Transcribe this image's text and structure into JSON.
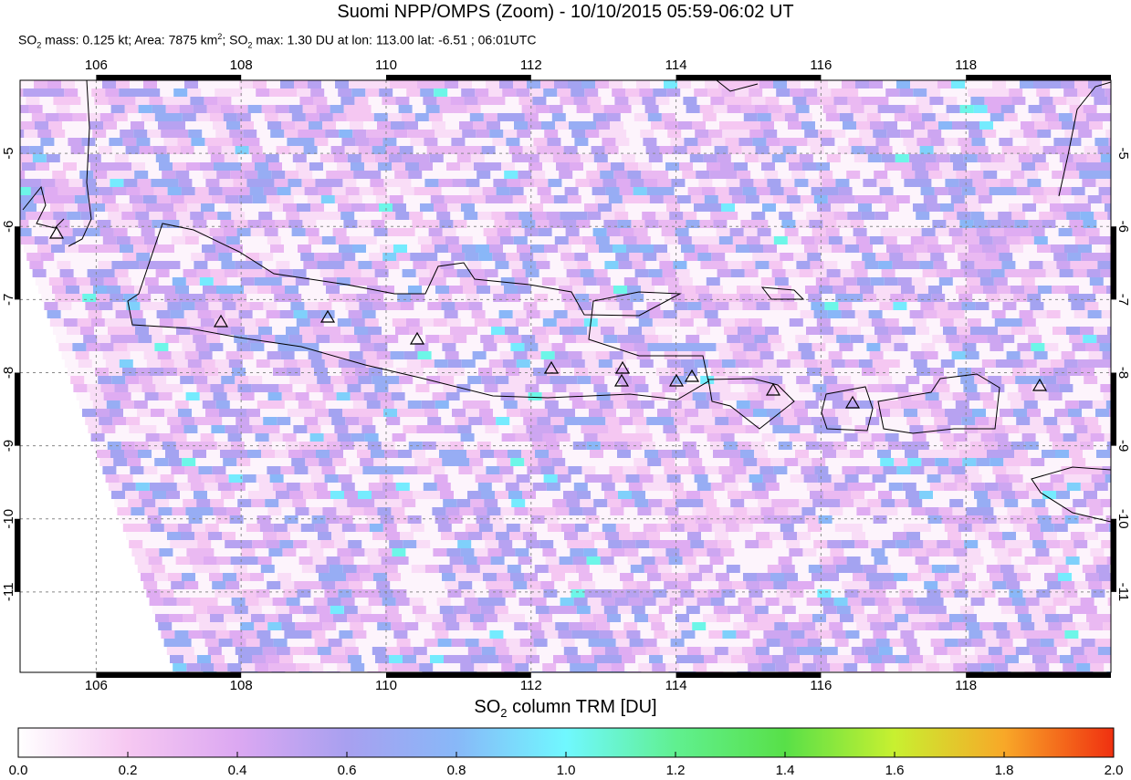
{
  "header": {
    "title": "Suomi NPP/OMPS (Zoom) - 10/10/2015 05:59-06:02 UT",
    "subtitle": [
      "SO",
      "2",
      " mass: 0.125 kt; Area: 7875 km",
      "2",
      "; SO",
      "2",
      " max: 1.30 DU at lon: 113.00 lat: -6.51 ; 06:01UTC"
    ]
  },
  "map": {
    "xlim": [
      104.95,
      120
    ],
    "ylim": [
      -12.1,
      -4
    ],
    "xticks": [
      106,
      108,
      110,
      112,
      114,
      116,
      118
    ],
    "yticks": [
      -5,
      -6,
      -7,
      -8,
      -9,
      -10,
      -11
    ]
  },
  "colorbar": {
    "label": [
      "SO",
      "2",
      " column TRM [DU]"
    ],
    "lim": [
      0,
      2
    ],
    "ticks": [
      {
        "value": 0,
        "label": "0.0"
      },
      {
        "value": 0.2,
        "label": "0.2"
      },
      {
        "value": 0.4,
        "label": "0.4"
      },
      {
        "value": 0.6,
        "label": "0.6"
      },
      {
        "value": 0.8,
        "label": "0.8"
      },
      {
        "value": 1,
        "label": "1.0"
      },
      {
        "value": 1.2,
        "label": "1.2"
      },
      {
        "value": 1.4,
        "label": "1.4"
      },
      {
        "value": 1.6,
        "label": "1.6"
      },
      {
        "value": 1.8,
        "label": "1.8"
      },
      {
        "value": 2,
        "label": "2.0"
      }
    ],
    "colors": [
      "#ffffff",
      "#f6c8f2",
      "#dca8f2",
      "#a8a0f0",
      "#88b8f8",
      "#70f8ff",
      "#60f090",
      "#58e048",
      "#c8f030",
      "#f8a828",
      "#f03010"
    ]
  }
}
